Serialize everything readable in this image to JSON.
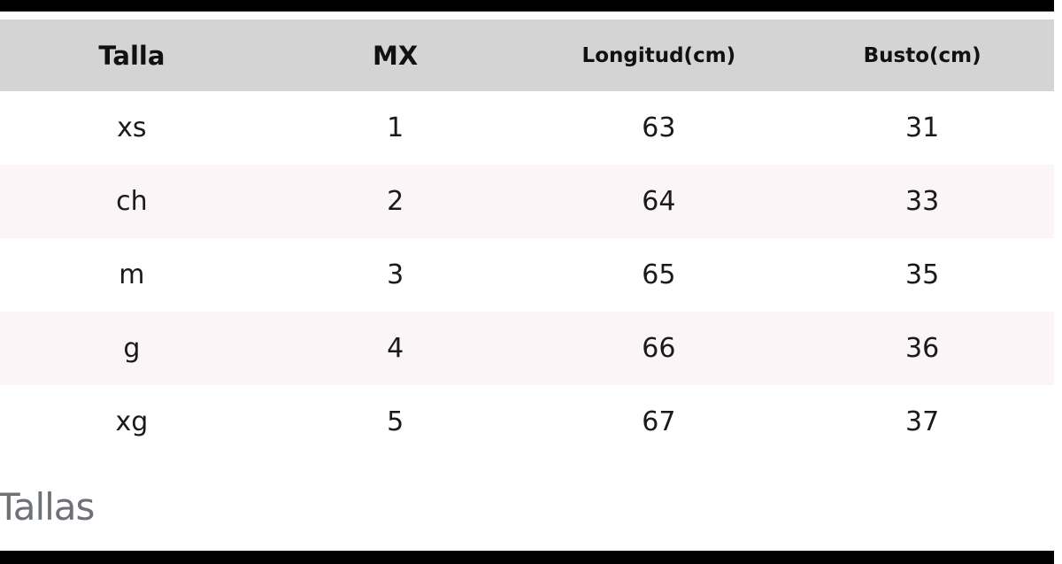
{
  "page": {
    "letterbox_color": "#000000",
    "background": "#ffffff"
  },
  "size_chart": {
    "header_bg": "#d4d4d4",
    "stripe_bg": "#fbf5f8",
    "columns": [
      {
        "label": "Talla"
      },
      {
        "label": "MX"
      },
      {
        "label": "Longitud(cm)"
      },
      {
        "label": "Busto(cm)"
      }
    ],
    "rows": [
      [
        "xs",
        "1",
        "63",
        "31"
      ],
      [
        "ch",
        "2",
        "64",
        "33"
      ],
      [
        "m",
        "3",
        "65",
        "35"
      ],
      [
        "g",
        "4",
        "66",
        "36"
      ],
      [
        "xg",
        "5",
        "67",
        "37"
      ]
    ]
  },
  "caption": {
    "label": "Tallas",
    "color": "#6e7277"
  }
}
